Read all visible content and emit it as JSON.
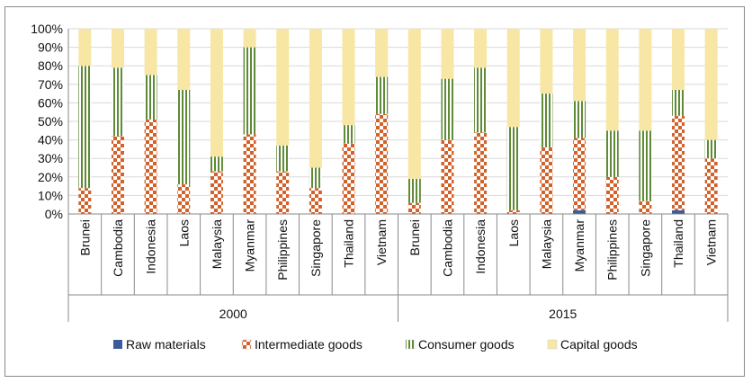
{
  "chart_data": {
    "type": "bar",
    "stacked": true,
    "percent": true,
    "title": "",
    "xlabel": "",
    "ylabel": "",
    "ylim": [
      0,
      100
    ],
    "y_ticks": [
      "0%",
      "10%",
      "20%",
      "30%",
      "40%",
      "50%",
      "60%",
      "70%",
      "80%",
      "90%",
      "100%"
    ],
    "groups": [
      {
        "label": "2000",
        "categories": [
          "Brunei",
          "Cambodia",
          "Indonesia",
          "Laos",
          "Malaysia",
          "Myanmar",
          "Philippines",
          "Singapore",
          "Thailand",
          "Vietnam"
        ],
        "raw": [
          0,
          0,
          0,
          0,
          0,
          0,
          0,
          0,
          0,
          0
        ],
        "intermediate": [
          14,
          42,
          51,
          16,
          23,
          43,
          23,
          14,
          38,
          54
        ],
        "consumer": [
          66,
          37,
          24,
          51,
          8,
          47,
          14,
          11,
          10,
          20
        ],
        "capital": [
          20,
          21,
          25,
          33,
          69,
          10,
          63,
          75,
          52,
          26
        ]
      },
      {
        "label": "2015",
        "categories": [
          "Brunei",
          "Cambodia",
          "Indonesia",
          "Laos",
          "Malaysia",
          "Myanmar",
          "Philippines",
          "Singapore",
          "Thailand",
          "Vietnam"
        ],
        "raw": [
          0,
          0,
          0,
          0,
          0,
          2,
          0,
          0,
          2,
          0
        ],
        "intermediate": [
          6,
          40,
          44,
          2,
          36,
          39,
          20,
          7,
          51,
          30
        ],
        "consumer": [
          13,
          33,
          35,
          45,
          29,
          20,
          25,
          38,
          14,
          10
        ],
        "capital": [
          81,
          27,
          21,
          53,
          35,
          39,
          55,
          55,
          33,
          60
        ]
      }
    ],
    "series": [
      {
        "name": "Raw materials",
        "key": "raw",
        "color": "#3b5b9a"
      },
      {
        "name": "Intermediate goods",
        "key": "intermediate",
        "color": "#d2622a"
      },
      {
        "name": "Consumer goods",
        "key": "consumer",
        "color": "#6b9440"
      },
      {
        "name": "Capital goods",
        "key": "capital",
        "color": "#f7e6a4"
      }
    ],
    "legend_position": "bottom"
  }
}
